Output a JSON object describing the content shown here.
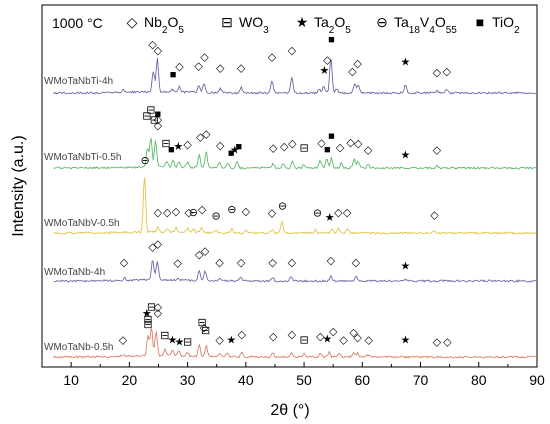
{
  "chart_data": {
    "type": "line",
    "title": "",
    "condition_label": "1000 °C",
    "xlabel": "2θ (°)",
    "ylabel": "Intensity (a.u.)",
    "xlim": [
      5,
      90
    ],
    "xticks": [
      "10",
      "20",
      "30",
      "40",
      "50",
      "60",
      "70",
      "80",
      "90"
    ],
    "grid": false,
    "legend_placement": "top",
    "legend": [
      {
        "key": "nb2o5",
        "symbol": "◇",
        "name_parts": [
          [
            "Nb",
            ""
          ],
          [
            "2",
            "sub"
          ],
          [
            "O",
            ""
          ],
          [
            "5",
            "sub"
          ]
        ]
      },
      {
        "key": "wo3",
        "symbol": "⊟",
        "name_parts": [
          [
            "WO",
            ""
          ],
          [
            "3",
            "sub"
          ]
        ]
      },
      {
        "key": "ta2o5",
        "symbol": "★",
        "name_parts": [
          [
            "Ta",
            ""
          ],
          [
            "2",
            "sub"
          ],
          [
            "O",
            ""
          ],
          [
            "5",
            "sub"
          ]
        ]
      },
      {
        "key": "ta18v4o55",
        "symbol": "⊖",
        "name_parts": [
          [
            "Ta",
            ""
          ],
          [
            "18",
            "sub"
          ],
          [
            "V",
            ""
          ],
          [
            "4",
            "sub"
          ],
          [
            "O",
            ""
          ],
          [
            "55",
            "sub"
          ]
        ]
      },
      {
        "key": "tio2",
        "symbol": "■",
        "name_parts": [
          [
            "TiO",
            ""
          ],
          [
            "2",
            "sub"
          ]
        ]
      }
    ],
    "series": [
      {
        "name": "WMoTaNbTi-4h",
        "color": "#6a6aa8",
        "peaks": [
          [
            19.0,
            0.08
          ],
          [
            24.1,
            0.55
          ],
          [
            24.8,
            0.9
          ],
          [
            27.4,
            0.06
          ],
          [
            28.6,
            0.15
          ],
          [
            31.9,
            0.2
          ],
          [
            32.8,
            0.25
          ],
          [
            35.6,
            0.12
          ],
          [
            39.2,
            0.15
          ],
          [
            44.5,
            0.33
          ],
          [
            47.9,
            0.4
          ],
          [
            52.6,
            0.1
          ],
          [
            53.4,
            0.18
          ],
          [
            54.6,
            0.95
          ],
          [
            55.6,
            0.12
          ],
          [
            58.7,
            0.25
          ],
          [
            59.3,
            0.2
          ],
          [
            67.4,
            0.22
          ],
          [
            72.8,
            0.08
          ],
          [
            74.5,
            0.1
          ]
        ],
        "markers": [
          [
            24.0,
            1.18,
            "nb2o5"
          ],
          [
            24.9,
            1.03,
            "nb2o5"
          ],
          [
            27.5,
            0.4,
            "tio2"
          ],
          [
            28.6,
            0.6,
            "nb2o5"
          ],
          [
            31.9,
            0.62,
            "nb2o5"
          ],
          [
            32.9,
            0.85,
            "nb2o5"
          ],
          [
            35.6,
            0.57,
            "nb2o5"
          ],
          [
            39.2,
            0.57,
            "nb2o5"
          ],
          [
            44.5,
            0.85,
            "nb2o5"
          ],
          [
            47.9,
            1.02,
            "nb2o5"
          ],
          [
            53.5,
            0.5,
            "ta2o5"
          ],
          [
            54.0,
            0.78,
            "nb2o5"
          ],
          [
            54.7,
            1.32,
            "tio2"
          ],
          [
            58.3,
            0.48,
            "nb2o5"
          ],
          [
            59.2,
            0.68,
            "nb2o5"
          ],
          [
            67.4,
            0.72,
            "ta2o5"
          ],
          [
            72.8,
            0.45,
            "nb2o5"
          ],
          [
            74.5,
            0.48,
            "nb2o5"
          ]
        ]
      },
      {
        "name": "WMoTaNbTi-0.5h",
        "color": "#5cba6a",
        "peaks": [
          [
            23.1,
            0.5
          ],
          [
            23.7,
            0.8
          ],
          [
            24.5,
            0.7
          ],
          [
            26.4,
            0.15
          ],
          [
            27.5,
            0.2
          ],
          [
            28.5,
            0.15
          ],
          [
            30.0,
            0.15
          ],
          [
            32.0,
            0.35
          ],
          [
            33.2,
            0.45
          ],
          [
            35.5,
            0.15
          ],
          [
            36.9,
            0.12
          ],
          [
            38.5,
            0.15
          ],
          [
            44.7,
            0.12
          ],
          [
            46.4,
            0.12
          ],
          [
            48.0,
            0.2
          ],
          [
            50.0,
            0.1
          ],
          [
            52.8,
            0.2
          ],
          [
            53.9,
            0.25
          ],
          [
            54.7,
            0.25
          ],
          [
            56.4,
            0.15
          ],
          [
            58.6,
            0.22
          ],
          [
            59.3,
            0.18
          ],
          [
            61.0,
            0.1
          ],
          [
            72.8,
            0.08
          ]
        ],
        "markers": [
          [
            23.0,
            1.27,
            "wo3"
          ],
          [
            23.7,
            1.43,
            "wo3"
          ],
          [
            24.3,
            1.17,
            "wo3"
          ],
          [
            24.9,
            1.33,
            "tio2"
          ],
          [
            24.9,
            1.18,
            "nb2o5"
          ],
          [
            24.9,
            1.03,
            "nb2o5"
          ],
          [
            26.3,
            0.55,
            "wo3"
          ],
          [
            27.2,
            0.4,
            "tio2"
          ],
          [
            28.4,
            0.48,
            "ta2o5"
          ],
          [
            30.0,
            0.52,
            "nb2o5"
          ],
          [
            32.2,
            0.72,
            "nb2o5"
          ],
          [
            33.2,
            0.8,
            "nb2o5"
          ],
          [
            35.6,
            0.5,
            "nb2o5"
          ],
          [
            37.5,
            0.3,
            "tio2"
          ],
          [
            38.1,
            0.38,
            "ta2o5"
          ],
          [
            38.8,
            0.47,
            "tio2"
          ],
          [
            44.7,
            0.43,
            "nb2o5"
          ],
          [
            46.6,
            0.48,
            "nb2o5"
          ],
          [
            48.0,
            0.55,
            "nb2o5"
          ],
          [
            50.0,
            0.43,
            "wo3"
          ],
          [
            53.0,
            0.57,
            "nb2o5"
          ],
          [
            54.0,
            0.4,
            "tio2"
          ],
          [
            54.7,
            0.75,
            "tio2"
          ],
          [
            56.2,
            0.45,
            "nb2o5"
          ],
          [
            58.0,
            0.58,
            "nb2o5"
          ],
          [
            59.3,
            0.55,
            "nb2o5"
          ],
          [
            61.0,
            0.38,
            "nb2o5"
          ],
          [
            67.4,
            0.25,
            "ta2o5"
          ],
          [
            72.8,
            0.38,
            "nb2o5"
          ]
        ]
      },
      {
        "name": "WMoTaNbV-0.5h",
        "color": "#e2c348",
        "peaks": [
          [
            22.6,
            1.5
          ],
          [
            24.9,
            0.12
          ],
          [
            26.5,
            0.1
          ],
          [
            28.0,
            0.12
          ],
          [
            30.0,
            0.1
          ],
          [
            31.0,
            0.1
          ],
          [
            32.4,
            0.12
          ],
          [
            34.9,
            0.06
          ],
          [
            37.6,
            0.1
          ],
          [
            40.0,
            0.08
          ],
          [
            44.5,
            0.08
          ],
          [
            46.2,
            0.3
          ],
          [
            52.0,
            0.08
          ],
          [
            54.8,
            0.1
          ],
          [
            55.9,
            0.12
          ],
          [
            57.5,
            0.1
          ],
          [
            72.4,
            0.06
          ]
        ],
        "markers": [
          [
            22.7,
            1.82,
            "ta18v4o55"
          ],
          [
            24.9,
            0.45,
            "nb2o5"
          ],
          [
            26.5,
            0.45,
            "nb2o5"
          ],
          [
            28.0,
            0.48,
            "nb2o5"
          ],
          [
            30.2,
            0.45,
            "nb2o5"
          ],
          [
            31.0,
            0.45,
            "ta18v4o55"
          ],
          [
            32.5,
            0.52,
            "nb2o5"
          ],
          [
            34.9,
            0.35,
            "ta18v4o55"
          ],
          [
            37.6,
            0.52,
            "ta18v4o55"
          ],
          [
            40.0,
            0.48,
            "nb2o5"
          ],
          [
            44.5,
            0.43,
            "nb2o5"
          ],
          [
            46.3,
            0.62,
            "ta18v4o55"
          ],
          [
            52.3,
            0.43,
            "ta18v4o55"
          ],
          [
            54.4,
            0.32,
            "ta2o5"
          ],
          [
            55.9,
            0.45,
            "nb2o5"
          ],
          [
            57.4,
            0.45,
            "nb2o5"
          ],
          [
            72.4,
            0.38,
            "nb2o5"
          ]
        ]
      },
      {
        "name": "WMoTaNb-4h",
        "color": "#6a6aa8",
        "peaks": [
          [
            19.2,
            0.06
          ],
          [
            24.0,
            0.55
          ],
          [
            24.8,
            0.5
          ],
          [
            28.4,
            0.05
          ],
          [
            32.0,
            0.25
          ],
          [
            33.0,
            0.25
          ],
          [
            35.5,
            0.08
          ],
          [
            39.2,
            0.1
          ],
          [
            44.6,
            0.1
          ],
          [
            47.8,
            0.1
          ],
          [
            54.6,
            0.12
          ],
          [
            58.9,
            0.12
          ],
          [
            67.4,
            0.04
          ]
        ],
        "markers": [
          [
            19.1,
            0.4,
            "nb2o5"
          ],
          [
            24.0,
            0.8,
            "nb2o5"
          ],
          [
            24.9,
            0.88,
            "nb2o5"
          ],
          [
            28.3,
            0.38,
            "nb2o5"
          ],
          [
            32.0,
            0.6,
            "nb2o5"
          ],
          [
            33.0,
            0.7,
            "nb2o5"
          ],
          [
            35.5,
            0.4,
            "nb2o5"
          ],
          [
            39.2,
            0.4,
            "nb2o5"
          ],
          [
            44.6,
            0.4,
            "nb2o5"
          ],
          [
            47.9,
            0.4,
            "nb2o5"
          ],
          [
            54.6,
            0.45,
            "nb2o5"
          ],
          [
            58.9,
            0.4,
            "nb2o5"
          ],
          [
            67.4,
            0.3,
            "ta2o5"
          ]
        ]
      },
      {
        "name": "WMoTaNb-0.5h",
        "color": "#d8826e",
        "peaks": [
          [
            18.9,
            0.05
          ],
          [
            23.2,
            0.55
          ],
          [
            23.8,
            0.75
          ],
          [
            24.6,
            0.65
          ],
          [
            26.1,
            0.2
          ],
          [
            27.4,
            0.15
          ],
          [
            28.5,
            0.12
          ],
          [
            30.0,
            0.1
          ],
          [
            32.0,
            0.3
          ],
          [
            33.2,
            0.3
          ],
          [
            35.5,
            0.1
          ],
          [
            36.8,
            0.1
          ],
          [
            39.3,
            0.12
          ],
          [
            44.6,
            0.12
          ],
          [
            47.9,
            0.12
          ],
          [
            50.0,
            0.08
          ],
          [
            52.8,
            0.1
          ],
          [
            54.3,
            0.12
          ],
          [
            56.0,
            0.1
          ],
          [
            58.5,
            0.12
          ],
          [
            59.2,
            0.1
          ],
          [
            61.0,
            0.06
          ]
        ],
        "markers": [
          [
            18.9,
            0.35,
            "nb2o5"
          ],
          [
            23.0,
            1.05,
            "ta2o5"
          ],
          [
            23.2,
            0.9,
            "wo3"
          ],
          [
            23.2,
            0.76,
            "wo3"
          ],
          [
            23.8,
            1.22,
            "wo3"
          ],
          [
            24.9,
            1.22,
            "nb2o5"
          ],
          [
            24.9,
            1.06,
            "nb2o5"
          ],
          [
            26.1,
            0.48,
            "wo3"
          ],
          [
            27.4,
            0.35,
            "ta2o5"
          ],
          [
            28.6,
            0.3,
            "ta2o5"
          ],
          [
            30.0,
            0.3,
            "wo3"
          ],
          [
            32.5,
            0.82,
            "wo3"
          ],
          [
            32.8,
            0.68,
            "nb2o5"
          ],
          [
            33.1,
            0.6,
            "wo3"
          ],
          [
            35.5,
            0.35,
            "nb2o5"
          ],
          [
            37.5,
            0.35,
            "ta2o5"
          ],
          [
            39.3,
            0.5,
            "nb2o5"
          ],
          [
            44.7,
            0.45,
            "nb2o5"
          ],
          [
            47.9,
            0.5,
            "nb2o5"
          ],
          [
            50.0,
            0.35,
            "wo3"
          ],
          [
            52.8,
            0.45,
            "nb2o5"
          ],
          [
            54.0,
            0.38,
            "ta2o5"
          ],
          [
            55.0,
            0.58,
            "nb2o5"
          ],
          [
            56.8,
            0.35,
            "nb2o5"
          ],
          [
            58.5,
            0.55,
            "nb2o5"
          ],
          [
            59.2,
            0.42,
            "nb2o5"
          ],
          [
            61.1,
            0.35,
            "nb2o5"
          ],
          [
            67.4,
            0.35,
            "ta2o5"
          ],
          [
            72.8,
            0.3,
            "nb2o5"
          ],
          [
            74.6,
            0.3,
            "nb2o5"
          ]
        ]
      }
    ]
  }
}
